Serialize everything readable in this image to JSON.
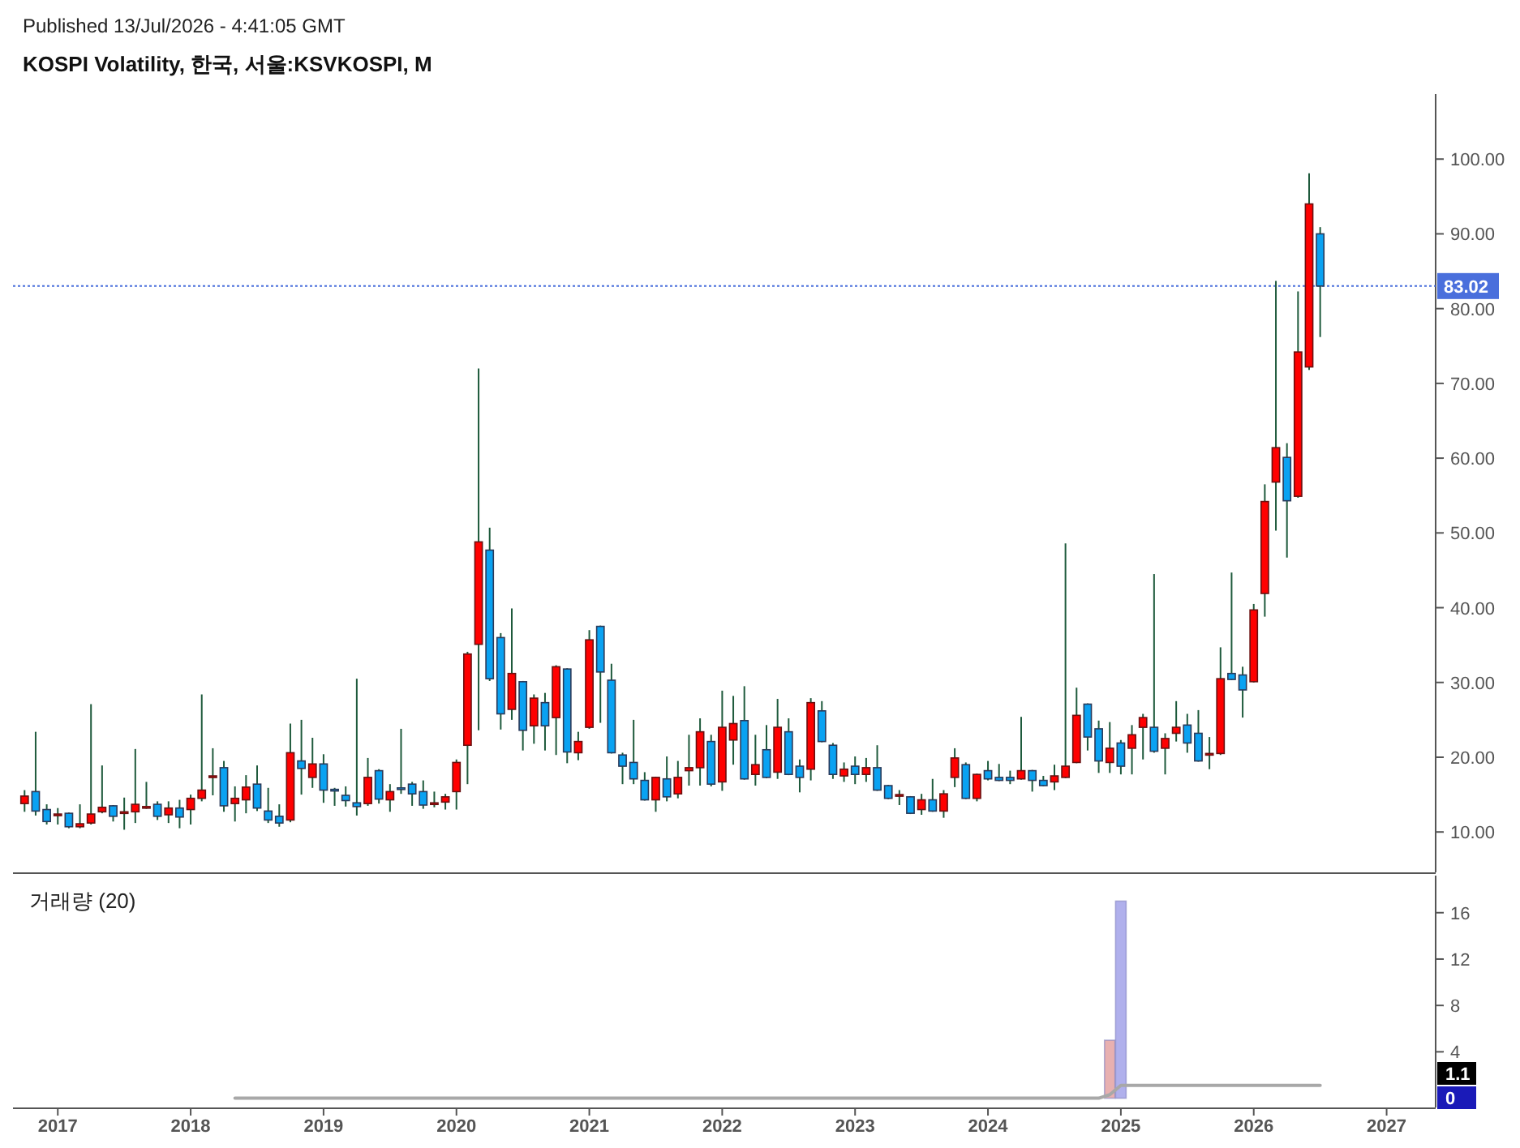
{
  "chart_data": [
    {
      "type": "candlestick",
      "title": "KOSPI Volatility, 한국, 서울:KSVKOSPI, M",
      "annotations": [
        "Published 13/Jul/2026 - 4:41:05 GMT"
      ],
      "x": [
        "2016-10",
        "2016-11",
        "2016-12",
        "2017-01",
        "2017-02",
        "2017-03",
        "2017-04",
        "2017-05",
        "2017-06",
        "2017-07",
        "2017-08",
        "2017-09",
        "2017-10",
        "2017-11",
        "2017-12",
        "2018-01",
        "2018-02",
        "2018-03",
        "2018-04",
        "2018-05",
        "2018-06",
        "2018-07",
        "2018-08",
        "2018-09",
        "2018-10",
        "2018-11",
        "2018-12",
        "2019-01",
        "2019-02",
        "2019-03",
        "2019-04",
        "2019-05",
        "2019-06",
        "2019-07",
        "2019-08",
        "2019-09",
        "2019-10",
        "2019-11",
        "2019-12",
        "2020-01",
        "2020-02",
        "2020-03",
        "2020-04",
        "2020-05",
        "2020-06",
        "2020-07",
        "2020-08",
        "2020-09",
        "2020-10",
        "2020-11",
        "2020-12",
        "2021-01",
        "2021-02",
        "2021-03",
        "2021-04",
        "2021-05",
        "2021-06",
        "2021-07",
        "2021-08",
        "2021-09",
        "2021-10",
        "2021-11",
        "2021-12",
        "2022-01",
        "2022-02",
        "2022-03",
        "2022-04",
        "2022-05",
        "2022-06",
        "2022-07",
        "2022-08",
        "2022-09",
        "2022-10",
        "2022-11",
        "2022-12",
        "2023-01",
        "2023-02",
        "2023-03",
        "2023-04",
        "2023-05",
        "2023-06",
        "2023-07",
        "2023-08",
        "2023-09",
        "2023-10",
        "2023-11",
        "2023-12",
        "2024-01",
        "2024-02",
        "2024-03",
        "2024-04",
        "2024-05",
        "2024-06",
        "2024-07",
        "2024-08",
        "2024-09",
        "2024-10",
        "2024-11",
        "2024-12",
        "2025-01",
        "2025-02",
        "2025-03",
        "2025-04",
        "2025-05",
        "2025-06",
        "2025-07",
        "2025-08",
        "2025-09",
        "2025-10",
        "2025-11",
        "2025-12",
        "2026-01",
        "2026-02",
        "2026-03",
        "2026-04",
        "2026-05",
        "2026-06",
        "2026-07"
      ],
      "ohlc": [
        [
          13.8,
          15.6,
          12.7,
          14.8
        ],
        [
          15.4,
          23.4,
          12.2,
          12.8
        ],
        [
          13.0,
          13.7,
          11.0,
          11.4
        ],
        [
          12.3,
          13.2,
          11.0,
          12.4
        ],
        [
          12.5,
          12.6,
          10.5,
          10.7
        ],
        [
          10.7,
          13.7,
          10.5,
          11.1
        ],
        [
          11.2,
          27.1,
          11.0,
          12.4
        ],
        [
          12.7,
          18.9,
          12.5,
          13.3
        ],
        [
          13.5,
          13.6,
          11.4,
          12.1
        ],
        [
          12.6,
          14.6,
          10.3,
          12.7
        ],
        [
          12.7,
          21.1,
          11.2,
          13.7
        ],
        [
          13.3,
          16.7,
          13.1,
          13.4
        ],
        [
          13.7,
          14.1,
          11.6,
          12.1
        ],
        [
          12.3,
          14.1,
          11.2,
          13.2
        ],
        [
          13.2,
          14.3,
          10.5,
          12.0
        ],
        [
          13.0,
          15.0,
          11.0,
          14.5
        ],
        [
          14.5,
          28.4,
          14.1,
          15.6
        ],
        [
          17.4,
          21.2,
          14.9,
          17.5
        ],
        [
          18.6,
          19.5,
          12.7,
          13.5
        ],
        [
          13.8,
          16.1,
          11.4,
          14.5
        ],
        [
          14.3,
          17.6,
          12.5,
          16.0
        ],
        [
          16.4,
          18.9,
          12.8,
          13.2
        ],
        [
          12.8,
          15.9,
          11.2,
          11.6
        ],
        [
          12.1,
          13.7,
          10.7,
          11.2
        ],
        [
          11.6,
          24.5,
          11.3,
          20.6
        ],
        [
          19.5,
          25.0,
          15.0,
          18.5
        ],
        [
          17.3,
          22.6,
          15.9,
          19.1
        ],
        [
          19.1,
          20.4,
          13.9,
          15.6
        ],
        [
          15.7,
          15.9,
          13.5,
          15.6
        ],
        [
          14.9,
          16.1,
          13.4,
          14.2
        ],
        [
          13.9,
          30.5,
          12.2,
          13.4
        ],
        [
          13.8,
          19.9,
          13.5,
          17.3
        ],
        [
          18.2,
          18.4,
          13.8,
          14.4
        ],
        [
          14.3,
          16.4,
          12.7,
          15.4
        ],
        [
          15.9,
          23.8,
          15.1,
          15.8
        ],
        [
          16.4,
          16.7,
          13.5,
          15.1
        ],
        [
          15.4,
          16.9,
          13.1,
          13.6
        ],
        [
          13.8,
          15.4,
          13.3,
          13.9
        ],
        [
          14.0,
          15.1,
          13.0,
          14.7
        ],
        [
          15.4,
          19.7,
          13.0,
          19.3
        ],
        [
          21.6,
          34.1,
          16.4,
          33.8
        ],
        [
          35.1,
          72.0,
          23.6,
          48.8
        ],
        [
          47.7,
          50.7,
          30.2,
          30.5
        ],
        [
          36.0,
          36.6,
          23.7,
          25.8
        ],
        [
          26.4,
          39.9,
          25.0,
          31.2
        ],
        [
          30.1,
          30.2,
          20.9,
          23.6
        ],
        [
          24.2,
          28.4,
          21.8,
          27.9
        ],
        [
          27.3,
          28.6,
          20.9,
          24.2
        ],
        [
          25.3,
          32.3,
          20.3,
          32.1
        ],
        [
          31.8,
          31.9,
          19.2,
          20.7
        ],
        [
          20.6,
          23.4,
          19.6,
          22.1
        ],
        [
          24.0,
          37.0,
          23.8,
          35.7
        ],
        [
          37.5,
          37.6,
          24.6,
          31.4
        ],
        [
          30.3,
          32.5,
          20.5,
          20.6
        ],
        [
          20.3,
          20.6,
          16.4,
          18.8
        ],
        [
          19.3,
          25.0,
          16.4,
          17.1
        ],
        [
          16.9,
          18.0,
          14.2,
          14.3
        ],
        [
          14.3,
          17.4,
          12.7,
          17.3
        ],
        [
          17.1,
          20.1,
          14.1,
          14.7
        ],
        [
          15.1,
          19.5,
          14.5,
          17.3
        ],
        [
          18.2,
          23.0,
          16.2,
          18.6
        ],
        [
          18.6,
          25.2,
          16.2,
          23.4
        ],
        [
          22.1,
          23.0,
          16.1,
          16.4
        ],
        [
          16.7,
          28.9,
          15.5,
          24.0
        ],
        [
          22.3,
          28.2,
          19.0,
          24.5
        ],
        [
          24.9,
          29.5,
          17.0,
          17.1
        ],
        [
          17.7,
          23.0,
          16.2,
          19.0
        ],
        [
          21.0,
          24.3,
          17.2,
          17.3
        ],
        [
          18.0,
          27.8,
          17.1,
          24.0
        ],
        [
          23.4,
          25.2,
          17.6,
          17.7
        ],
        [
          18.8,
          19.7,
          15.3,
          17.3
        ],
        [
          18.4,
          27.9,
          16.9,
          27.3
        ],
        [
          26.2,
          27.5,
          22.0,
          22.1
        ],
        [
          21.6,
          21.9,
          17.1,
          17.7
        ],
        [
          17.5,
          19.3,
          16.7,
          18.4
        ],
        [
          18.8,
          20.1,
          16.4,
          17.7
        ],
        [
          17.7,
          19.9,
          16.7,
          18.6
        ],
        [
          18.6,
          21.6,
          15.5,
          15.6
        ],
        [
          16.2,
          16.3,
          14.4,
          14.5
        ],
        [
          14.9,
          15.6,
          13.6,
          15.0
        ],
        [
          14.7,
          14.8,
          12.4,
          12.5
        ],
        [
          13.0,
          15.1,
          12.3,
          14.3
        ],
        [
          14.3,
          17.1,
          12.7,
          12.8
        ],
        [
          12.8,
          15.6,
          11.9,
          15.1
        ],
        [
          17.3,
          21.2,
          16.0,
          19.9
        ],
        [
          19.0,
          19.3,
          14.4,
          14.5
        ],
        [
          14.5,
          17.8,
          14.1,
          17.7
        ],
        [
          18.2,
          19.5,
          16.9,
          17.1
        ],
        [
          17.3,
          19.1,
          16.8,
          16.9
        ],
        [
          17.3,
          18.2,
          16.4,
          16.9
        ],
        [
          17.1,
          25.4,
          17.0,
          18.2
        ],
        [
          18.2,
          18.3,
          15.4,
          16.9
        ],
        [
          16.9,
          17.5,
          16.1,
          16.2
        ],
        [
          16.7,
          19.0,
          15.6,
          17.5
        ],
        [
          17.3,
          48.6,
          17.2,
          18.8
        ],
        [
          19.3,
          29.3,
          19.2,
          25.6
        ],
        [
          27.1,
          27.2,
          20.9,
          22.7
        ],
        [
          23.8,
          24.9,
          17.9,
          19.5
        ],
        [
          19.3,
          24.7,
          17.9,
          21.2
        ],
        [
          21.9,
          22.3,
          17.7,
          18.8
        ],
        [
          21.2,
          24.3,
          17.7,
          23.0
        ],
        [
          24.0,
          25.8,
          19.7,
          25.3
        ],
        [
          24.0,
          44.5,
          20.6,
          20.8
        ],
        [
          21.2,
          23.2,
          17.7,
          22.5
        ],
        [
          23.2,
          27.5,
          22.1,
          24.0
        ],
        [
          24.3,
          25.8,
          20.6,
          21.9
        ],
        [
          23.2,
          26.3,
          19.4,
          19.5
        ],
        [
          20.4,
          22.7,
          18.4,
          20.5
        ],
        [
          20.5,
          34.7,
          20.3,
          30.5
        ],
        [
          31.2,
          44.7,
          30.3,
          30.4
        ],
        [
          31.0,
          32.1,
          25.3,
          29.0
        ],
        [
          30.1,
          40.5,
          30.0,
          39.7
        ],
        [
          41.9,
          56.5,
          38.8,
          54.2
        ],
        [
          56.8,
          83.7,
          50.3,
          61.4
        ],
        [
          60.1,
          62.0,
          46.7,
          54.3
        ],
        [
          54.9,
          82.3,
          54.7,
          74.2
        ],
        [
          72.2,
          98.1,
          71.8,
          94.0
        ],
        [
          90.0,
          90.9,
          76.2,
          83.02
        ]
      ],
      "xlim": [
        "2016-08-30",
        "2027-05-14"
      ],
      "ylim": [
        4.6,
        108.7
      ],
      "yticks": [
        {
          "value": 10,
          "label": "10.00"
        },
        {
          "value": 20,
          "label": "20.00"
        },
        {
          "value": 30,
          "label": "30.00"
        },
        {
          "value": 40,
          "label": "40.00"
        },
        {
          "value": 50,
          "label": "50.00"
        },
        {
          "value": 60,
          "label": "60.00"
        },
        {
          "value": 70,
          "label": "70.00"
        },
        {
          "value": 80,
          "label": "80.00"
        },
        {
          "value": 90,
          "label": "90.00"
        },
        {
          "value": 100,
          "label": "100.00"
        }
      ],
      "ref_lines": [
        {
          "axis": "y",
          "value": 83.02,
          "label": "83.02",
          "color": "#4a6fdc",
          "line_style": "dotted"
        }
      ],
      "tick_labels": "y"
    },
    {
      "type": "bar",
      "title": "거래량 (20)",
      "series": [
        {
          "type": "bar",
          "x": [
            "2024-12",
            "2025-01"
          ],
          "values": [
            5,
            17
          ],
          "colors": [
            "#e8b0b0",
            "#b0b0ec"
          ]
        },
        {
          "type": "line",
          "x": [
            "2018-05",
            "2024-11",
            "2024-12",
            "2025-01",
            "2026-07"
          ],
          "values": [
            0,
            0,
            0.3,
            1.1,
            1.1
          ],
          "color": "#a8a8a8"
        }
      ],
      "annotations": [
        "1.1",
        "0"
      ],
      "xlim": [
        "2016-08-30",
        "2027-05-14"
      ],
      "xticks": [
        "2017",
        "2018",
        "2019",
        "2020",
        "2021",
        "2022",
        "2023",
        "2024",
        "2025",
        "2026",
        "2027"
      ],
      "ylim": [
        -0.8,
        19.2
      ],
      "yticks": [
        4,
        8,
        12,
        16
      ]
    }
  ]
}
